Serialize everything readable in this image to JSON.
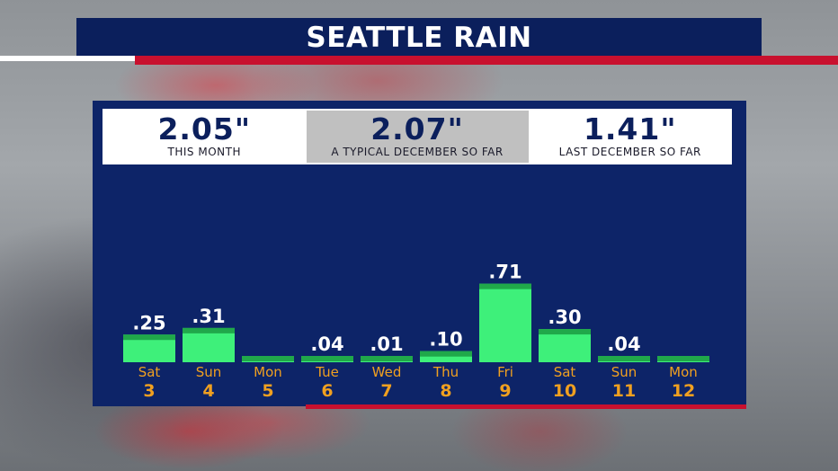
{
  "header": {
    "title": "SEATTLE RAIN"
  },
  "stats": [
    {
      "value": "2.05\"",
      "label": "THIS MONTH"
    },
    {
      "value": "2.07\"",
      "label": "A TYPICAL DECEMBER SO FAR"
    },
    {
      "value": "1.41\"",
      "label": "LAST DECEMBER SO FAR"
    }
  ],
  "colors": {
    "navy": "#0b1f5c",
    "panel": "#0d2468",
    "accent_red": "#c8102e",
    "bar": "#3ef07a",
    "bar_top": "#20a84a",
    "axis_text": "#f0a020"
  },
  "chart_data": {
    "type": "bar",
    "title": "SEATTLE RAIN",
    "categories": [
      "Sat 3",
      "Sun 4",
      "Mon 5",
      "Tue 6",
      "Wed 7",
      "Thu 8",
      "Fri 9",
      "Sat 10",
      "Sun 11",
      "Mon 12"
    ],
    "days": [
      "Sat",
      "Sun",
      "Mon",
      "Tue",
      "Wed",
      "Thu",
      "Fri",
      "Sat",
      "Sun",
      "Mon"
    ],
    "dates": [
      "3",
      "4",
      "5",
      "6",
      "7",
      "8",
      "9",
      "10",
      "11",
      "12"
    ],
    "values": [
      0.25,
      0.31,
      0.0,
      0.04,
      0.01,
      0.1,
      0.71,
      0.3,
      0.04,
      0.0
    ],
    "value_labels": [
      ".25",
      ".31",
      "",
      ".04",
      ".01",
      ".10",
      ".71",
      ".30",
      ".04",
      ""
    ],
    "unit": "inches",
    "xlabel": "",
    "ylabel": "",
    "grid": false,
    "legend": "none"
  }
}
